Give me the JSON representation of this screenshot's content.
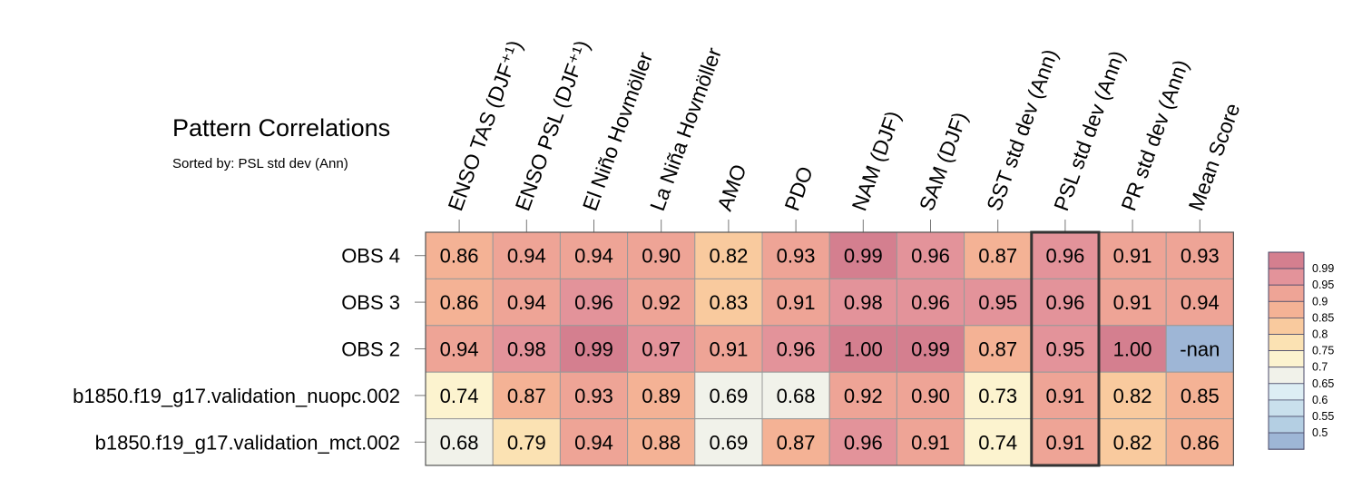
{
  "title": "Pattern Correlations",
  "subtitle": "Sorted by: PSL std dev (Ann)",
  "chart_data": {
    "type": "heatmap",
    "columns": [
      "ENSO TAS (DJF⁺¹)",
      "ENSO PSL (DJF⁺¹)",
      "El Niño Hovmöller",
      "La Niña Hovmöller",
      "AMO",
      "PDO",
      "NAM (DJF)",
      "SAM (DJF)",
      "SST std dev (Ann)",
      "PSL std dev (Ann)",
      "PR std dev (Ann)",
      "Mean Score"
    ],
    "rows": [
      "OBS 4",
      "OBS 3",
      "OBS 2",
      "b1850.f19_g17.validation_nuopc.002",
      "b1850.f19_g17.validation_mct.002"
    ],
    "values": [
      [
        "0.86",
        "0.94",
        "0.94",
        "0.90",
        "0.82",
        "0.93",
        "0.99",
        "0.96",
        "0.87",
        "0.96",
        "0.91",
        "0.93"
      ],
      [
        "0.86",
        "0.94",
        "0.96",
        "0.92",
        "0.83",
        "0.91",
        "0.98",
        "0.96",
        "0.95",
        "0.96",
        "0.91",
        "0.94"
      ],
      [
        "0.94",
        "0.98",
        "0.99",
        "0.97",
        "0.91",
        "0.96",
        "1.00",
        "0.99",
        "0.87",
        "0.95",
        "1.00",
        "-nan"
      ],
      [
        "0.74",
        "0.87",
        "0.93",
        "0.89",
        "0.69",
        "0.68",
        "0.92",
        "0.90",
        "0.73",
        "0.91",
        "0.82",
        "0.85"
      ],
      [
        "0.68",
        "0.79",
        "0.94",
        "0.88",
        "0.69",
        "0.87",
        "0.96",
        "0.91",
        "0.74",
        "0.91",
        "0.82",
        "0.86"
      ]
    ],
    "highlighted_column": "PSL std dev (Ann)",
    "colorbar": {
      "levels": [
        "0.99",
        "0.95",
        "0.9",
        "0.85",
        "0.8",
        "0.75",
        "0.7",
        "0.65",
        "0.6",
        "0.55",
        "0.5"
      ],
      "colors": [
        "#d47f8f",
        "#e3939a",
        "#eea496",
        "#f4b295",
        "#f9ca9e",
        "#fbe2b3",
        "#fcf3cf",
        "#f1f2ea",
        "#ddeef4",
        "#c9e0ec",
        "#b4cfe3",
        "#9eb6d6"
      ]
    },
    "nan_color": "#9eb6d6",
    "cell_edge_color": "#999999",
    "highlight_edge_color": "#333333"
  }
}
